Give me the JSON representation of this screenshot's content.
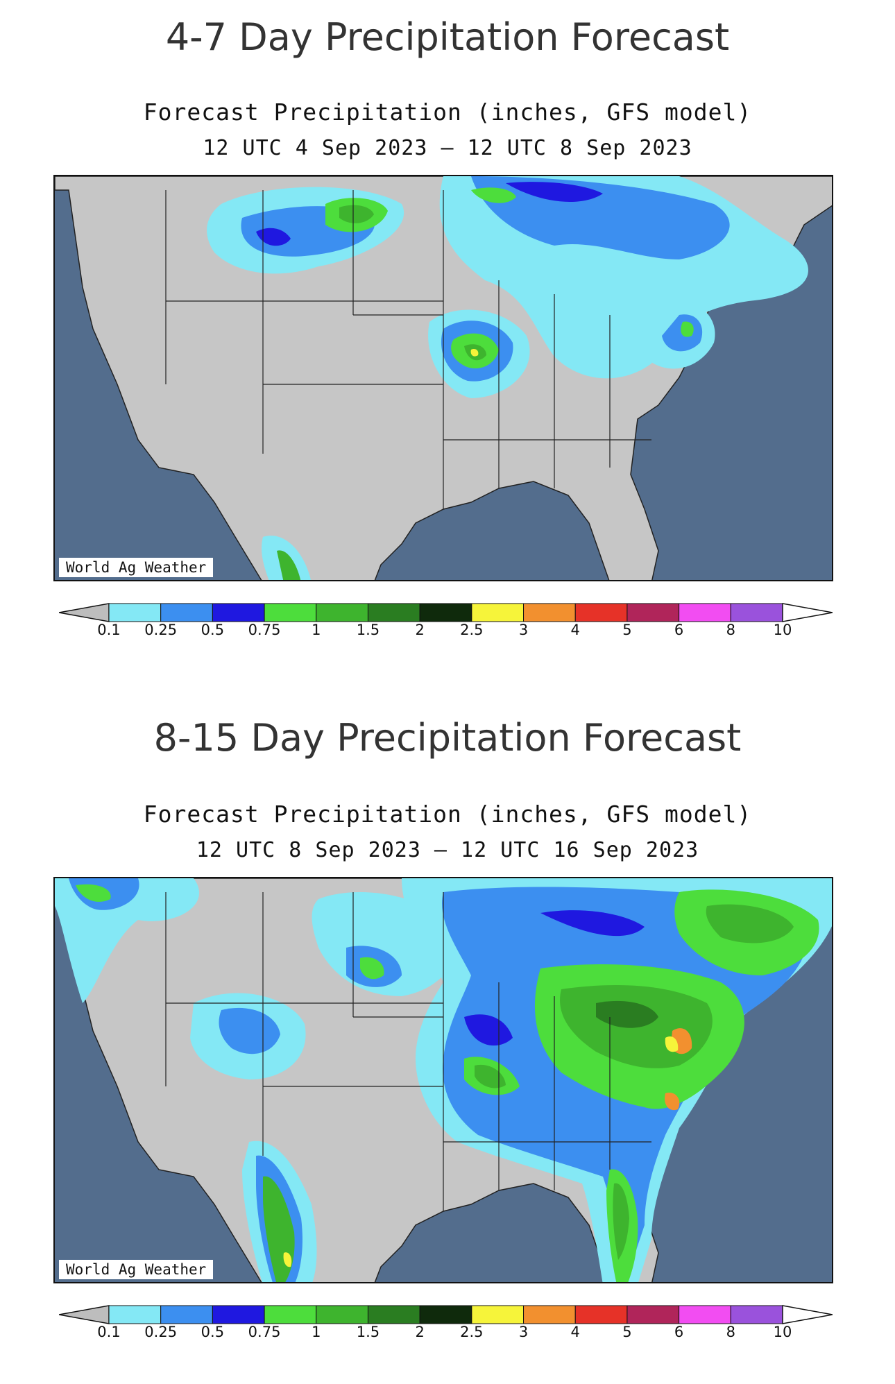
{
  "legend": {
    "bins": [
      {
        "color": "#84e8f5"
      },
      {
        "color": "#3c8ff0"
      },
      {
        "color": "#1f18e0"
      },
      {
        "color": "#4ddd3c"
      },
      {
        "color": "#3eb42e"
      },
      {
        "color": "#2a7d21"
      },
      {
        "color": "#0f2a0c"
      },
      {
        "color": "#f6f43a"
      },
      {
        "color": "#f2902f"
      },
      {
        "color": "#e63228"
      },
      {
        "color": "#b0255a"
      },
      {
        "color": "#f24df2"
      },
      {
        "color": "#9a52dc"
      }
    ],
    "low_color": "#bdbdbd",
    "high_color": "#ffffff",
    "tick_labels": [
      "0.1",
      "0.25",
      "0.5",
      "0.75",
      "1",
      "1.5",
      "2",
      "2.5",
      "3",
      "4",
      "5",
      "6",
      "8",
      "10"
    ]
  },
  "panels": [
    {
      "heading": "4-7 Day Precipitation Forecast",
      "title": "Forecast Precipitation (inches, GFS model)",
      "dates": "12 UTC 4 Sep 2023 – 12 UTC 8 Sep 2023",
      "credit": "World Ag Weather"
    },
    {
      "heading": "8-15 Day Precipitation Forecast",
      "title": "Forecast Precipitation (inches, GFS model)",
      "dates": "12 UTC 8 Sep 2023 – 12 UTC 16 Sep 2023",
      "credit": "World Ag Weather"
    }
  ],
  "colors": {
    "ocean": "#536d8d",
    "land": "#c6c6c6",
    "lakes": "#536d8d",
    "borders": "#222222"
  }
}
